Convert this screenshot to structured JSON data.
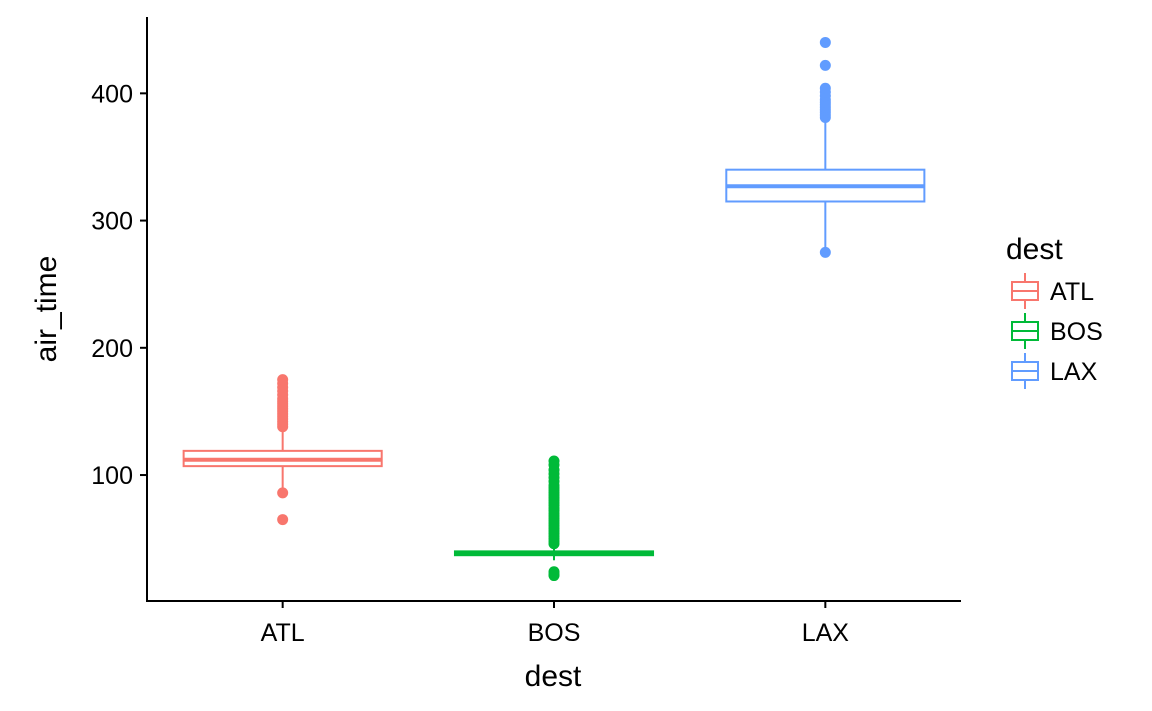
{
  "chart_data": {
    "type": "boxplot",
    "xlabel": "dest",
    "ylabel": "air_time",
    "categories": [
      "ATL",
      "BOS",
      "LAX"
    ],
    "ylim": [
      1,
      460
    ],
    "yticks": [
      100,
      200,
      300,
      400
    ],
    "grid": false,
    "legend": {
      "title": "dest",
      "position": "right",
      "entries": [
        "ATL",
        "BOS",
        "LAX"
      ]
    },
    "series": [
      {
        "category": "ATL",
        "color": "#F8766D",
        "q1": 107,
        "median": 112,
        "q3": 119,
        "whisker_low": 89,
        "whisker_high": 137,
        "outliers": [
          65,
          86,
          138,
          140,
          142,
          144,
          146,
          148,
          150,
          152,
          154,
          156,
          158,
          160,
          163,
          166,
          169,
          172,
          175
        ]
      },
      {
        "category": "BOS",
        "color": "#00BA38",
        "q1": 37,
        "median": 38,
        "q3": 40,
        "whisker_low": 33,
        "whisker_high": 43,
        "outliers": [
          21,
          22,
          24,
          46,
          48,
          50,
          52,
          54,
          56,
          58,
          60,
          62,
          64,
          66,
          68,
          70,
          72,
          74,
          76,
          78,
          80,
          82,
          84,
          86,
          88,
          90,
          92,
          95,
          98,
          101,
          104,
          108,
          111
        ]
      },
      {
        "category": "LAX",
        "color": "#619CFF",
        "q1": 315,
        "median": 327,
        "q3": 340,
        "whisker_low": 279,
        "whisker_high": 379,
        "outliers": [
          275,
          381,
          383,
          385,
          387,
          389,
          391,
          393,
          395,
          398,
          401,
          404,
          422,
          440
        ]
      }
    ]
  }
}
